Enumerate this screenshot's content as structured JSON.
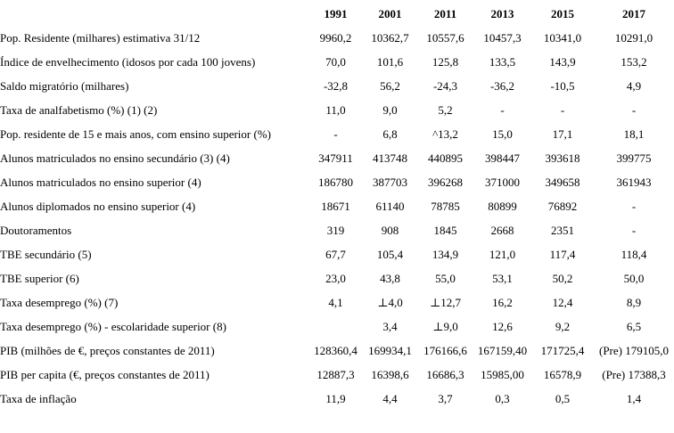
{
  "table": {
    "columns": [
      "1991",
      "2001",
      "2011",
      "2013",
      "2015",
      "2017"
    ],
    "rows": [
      {
        "label": "Pop. Residente (milhares) estimativa 31/12",
        "values": [
          "9960,2",
          "10362,7",
          "10557,6",
          "10457,3",
          "10341,0",
          "10291,0"
        ]
      },
      {
        "label": "Índice de envelhecimento (idosos por cada 100 jovens)",
        "values": [
          "70,0",
          "101,6",
          "125,8",
          "133,5",
          "143,9",
          "153,2"
        ]
      },
      {
        "label": "Saldo migratório (milhares)",
        "values": [
          "-32,8",
          "56,2",
          "-24,3",
          "-36,2",
          "-10,5",
          "4,9"
        ]
      },
      {
        "label": "Taxa de analfabetismo (%) (1) (2)",
        "values": [
          "11,0",
          "9,0",
          "5,2",
          "-",
          "-",
          "-"
        ]
      },
      {
        "label": "Pop. residente de 15 e mais anos, com ensino superior (%)",
        "values": [
          "-",
          "6,8",
          "^13,2",
          "15,0",
          "17,1",
          "18,1"
        ]
      },
      {
        "label": "Alunos matriculados no ensino secundário (3) (4)",
        "values": [
          "347911",
          "413748",
          "440895",
          "398447",
          "393618",
          "399775"
        ]
      },
      {
        "label": "Alunos matriculados no ensino superior (4)",
        "values": [
          "186780",
          "387703",
          "396268",
          "371000",
          "349658",
          "361943"
        ]
      },
      {
        "label": "Alunos diplomados no ensino superior (4)",
        "values": [
          "18671",
          "61140",
          "78785",
          "80899",
          "76892",
          "-"
        ]
      },
      {
        "label": "Doutoramentos",
        "values": [
          "319",
          "908",
          "1845",
          "2668",
          "2351",
          "-"
        ]
      },
      {
        "label": "TBE secundário (5)",
        "values": [
          "67,7",
          "105,4",
          "134,9",
          "121,0",
          "117,4",
          "118,4"
        ]
      },
      {
        "label": "TBE superior (6)",
        "values": [
          "23,0",
          "43,8",
          "55,0",
          "53,1",
          "50,2",
          "50,0"
        ]
      },
      {
        "label": "Taxa desemprego (%) (7)",
        "values": [
          "4,1",
          "⊥4,0",
          "⊥12,7",
          "16,2",
          "12,4",
          "8,9"
        ]
      },
      {
        "label": "Taxa desemprego (%) - escolaridade superior (8)",
        "values": [
          "",
          "3,4",
          "⊥9,0",
          "12,6",
          "9,2",
          "6,5"
        ]
      },
      {
        "label": "PIB (milhões de €, preços constantes de 2011)",
        "values": [
          "128360,4",
          "169934,1",
          "176166,6",
          "167159,40",
          "171725,4",
          "(Pre) 179105,0"
        ]
      },
      {
        "label": "PIB per capita (€, preços constantes de 2011)",
        "values": [
          "12887,3",
          "16398,6",
          "16686,3",
          "15985,00",
          "16578,9",
          "(Pre) 17388,3"
        ]
      },
      {
        "label": "Taxa de inflação",
        "values": [
          "11,9",
          "4,4",
          "3,7",
          "0,3",
          "0,5",
          "1,4"
        ]
      }
    ]
  }
}
